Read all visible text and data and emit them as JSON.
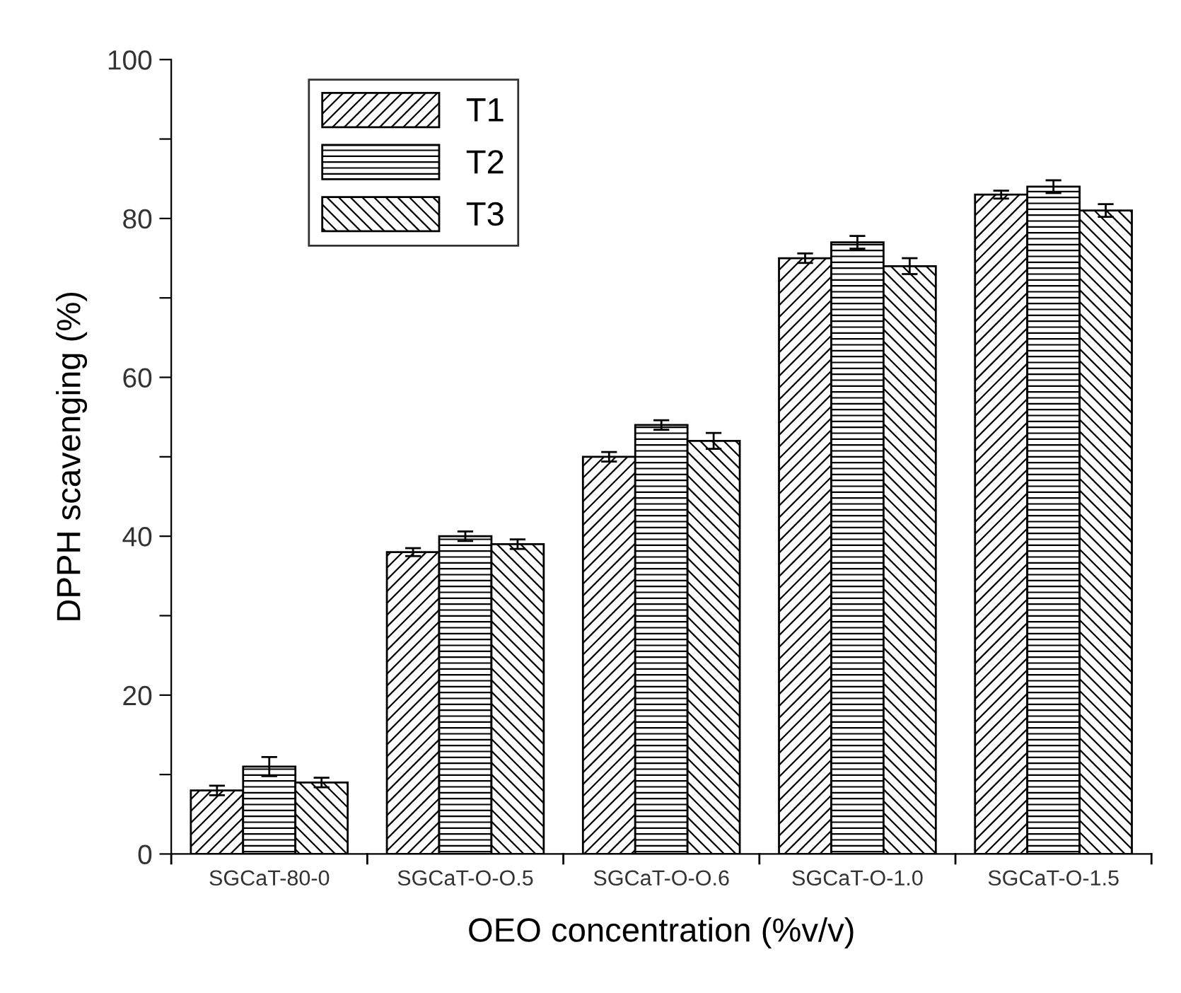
{
  "chart_data": {
    "type": "bar",
    "xlabel": "OEO concentration (%v/v)",
    "ylabel": "DPPH scavenging (%)",
    "categories": [
      "SGCaT-80-0",
      "SGCaT-O-O.5",
      "SGCaT-O-O.6",
      "SGCaT-O-1.0",
      "SGCaT-O-1.5"
    ],
    "series": [
      {
        "name": "T1",
        "color": "#000000",
        "values": [
          8,
          38,
          50,
          75,
          83
        ],
        "errors": [
          0.6,
          0.5,
          0.6,
          0.6,
          0.5
        ]
      },
      {
        "name": "T2",
        "color": "#000000",
        "values": [
          11,
          40,
          54,
          77,
          84
        ],
        "errors": [
          1.2,
          0.6,
          0.6,
          0.8,
          0.8
        ]
      },
      {
        "name": "T3",
        "color": "#000000",
        "values": [
          9,
          39,
          52,
          74,
          81
        ],
        "errors": [
          0.6,
          0.6,
          1.0,
          1.0,
          0.8
        ]
      }
    ],
    "ylim": [
      0,
      100
    ],
    "yticks": [
      0,
      {
        "value": 10,
        "label": null
      },
      20,
      {
        "value": 30,
        "label": null
      },
      40,
      {
        "value": 50,
        "label": null
      },
      60,
      {
        "value": 70,
        "label": null
      },
      80,
      {
        "value": 90,
        "label": null
      },
      100
    ],
    "grid": false,
    "legend": "top left"
  }
}
